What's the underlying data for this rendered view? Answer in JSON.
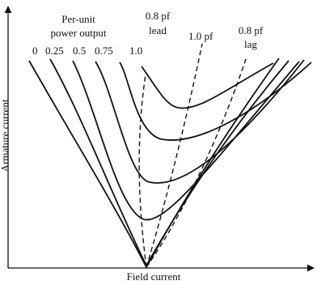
{
  "legend": {
    "title_line1": "Per-unit",
    "title_line2": "power output"
  },
  "power_levels": [
    "0",
    "0.25",
    "0.5",
    "0.75",
    "1.0"
  ],
  "pf_lines": {
    "lead_line1": "0.8 pf",
    "lead_line2": "lead",
    "unity": "1.0 pf",
    "lag_line1": "0.8 pf",
    "lag_line2": "lag"
  },
  "axes": {
    "x_label": "Field current",
    "y_label": "Armature current"
  },
  "colors": {
    "ink": "#111111"
  }
}
